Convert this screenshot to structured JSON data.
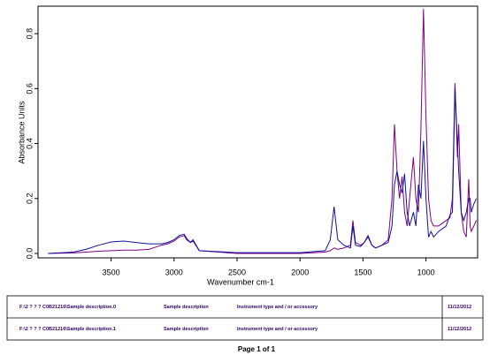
{
  "chart_data": {
    "type": "line",
    "xlabel": "Wavenumber cm-1",
    "ylabel": "Absorbance Units",
    "x": [
      4000,
      3800,
      3700,
      3600,
      3500,
      3400,
      3300,
      3200,
      3100,
      3050,
      3000,
      2960,
      2920,
      2900,
      2870,
      2850,
      2800,
      2500,
      2000,
      1800,
      1760,
      1730,
      1700,
      1650,
      1600,
      1580,
      1560,
      1520,
      1490,
      1460,
      1430,
      1400,
      1350,
      1300,
      1270,
      1250,
      1230,
      1210,
      1190,
      1170,
      1150,
      1130,
      1100,
      1080,
      1060,
      1040,
      1020,
      1000,
      980,
      960,
      940,
      900,
      870,
      840,
      810,
      790,
      770,
      750,
      740,
      720,
      700,
      680,
      660,
      650,
      640,
      620,
      600
    ],
    "series": [
      {
        "color": "#800080",
        "values": [
          0.0,
          0.002,
          0.005,
          0.008,
          0.01,
          0.012,
          0.012,
          0.015,
          0.03,
          0.035,
          0.045,
          0.06,
          0.065,
          0.05,
          0.04,
          0.045,
          0.01,
          0.0,
          0.0,
          0.005,
          0.01,
          0.02,
          0.015,
          0.02,
          0.03,
          0.12,
          0.04,
          0.03,
          0.04,
          0.06,
          0.03,
          0.02,
          0.03,
          0.05,
          0.2,
          0.47,
          0.3,
          0.2,
          0.28,
          0.15,
          0.1,
          0.2,
          0.35,
          0.2,
          0.15,
          0.45,
          0.89,
          0.5,
          0.2,
          0.12,
          0.1,
          0.1,
          0.11,
          0.12,
          0.13,
          0.2,
          0.62,
          0.35,
          0.47,
          0.15,
          0.08,
          0.06,
          0.27,
          0.1,
          0.08,
          0.1,
          0.12
        ]
      },
      {
        "color": "#1010a0",
        "values": [
          0.0,
          0.005,
          0.015,
          0.03,
          0.042,
          0.045,
          0.04,
          0.035,
          0.035,
          0.04,
          0.05,
          0.065,
          0.07,
          0.055,
          0.04,
          0.05,
          0.01,
          0.003,
          0.003,
          0.01,
          0.05,
          0.17,
          0.05,
          0.03,
          0.02,
          0.1,
          0.03,
          0.025,
          0.04,
          0.065,
          0.03,
          0.02,
          0.03,
          0.04,
          0.1,
          0.25,
          0.3,
          0.25,
          0.22,
          0.29,
          0.15,
          0.1,
          0.15,
          0.1,
          0.25,
          0.2,
          0.41,
          0.2,
          0.06,
          0.08,
          0.06,
          0.08,
          0.09,
          0.1,
          0.14,
          0.15,
          0.6,
          0.4,
          0.3,
          0.15,
          0.12,
          0.15,
          0.2,
          0.2,
          0.15,
          0.18,
          0.2
        ]
      }
    ],
    "xlim": [
      4080,
      590
    ],
    "xticks": [
      3500,
      3000,
      2500,
      2000,
      1500,
      1000
    ],
    "ylim": [
      -0.016,
      0.9
    ],
    "yticks": [
      {
        "value": 0,
        "label": "0.0"
      },
      0.2,
      0.4,
      0.6,
      0.8
    ],
    "grid": false
  },
  "table": {
    "rows": [
      [
        "F:\\2 ? ? ? C0B21216\\Sample description.0",
        "Sample description",
        "Instrument type and / or accessory",
        "11/12/2012"
      ],
      [
        "F:\\2 ? ? ? C0B21216\\Sample description.1",
        "Sample description",
        "Instrument type and / or accessory",
        "11/12/2012"
      ]
    ]
  },
  "footer": "Page 1 of 1"
}
